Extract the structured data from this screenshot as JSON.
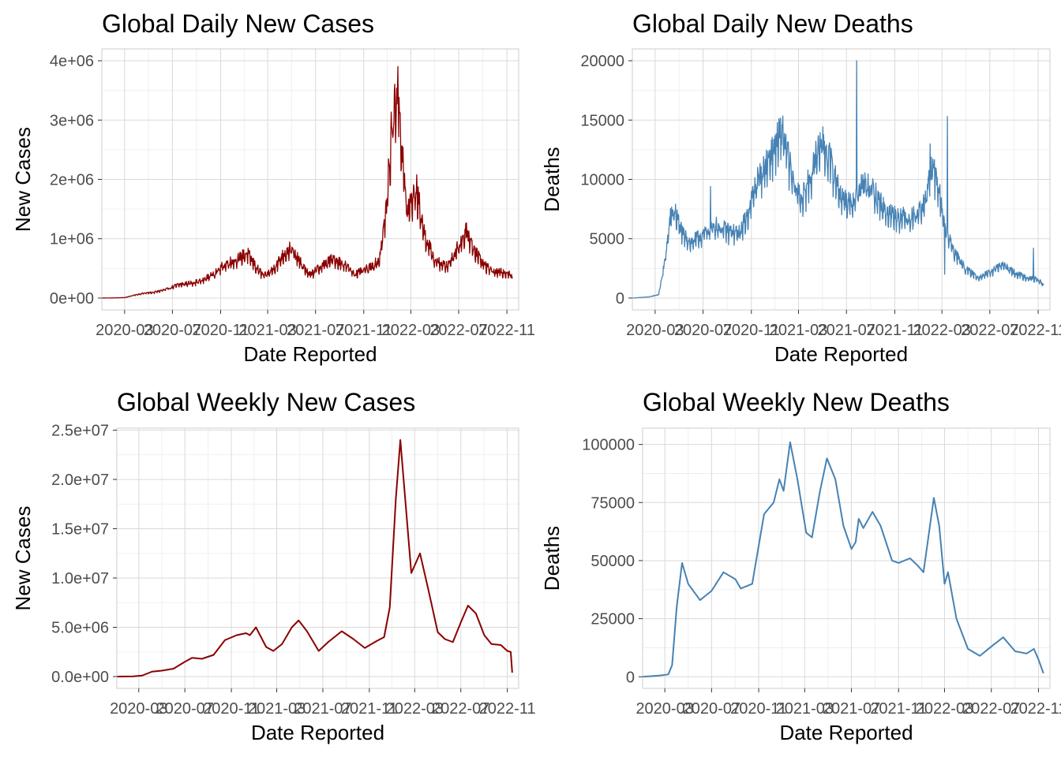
{
  "colors": {
    "cases": "#8B0000",
    "deaths": "#4682B4"
  },
  "chart_data": [
    {
      "type": "line",
      "title": "Global Daily New Cases",
      "xlabel": "Date Reported",
      "ylabel": "New Cases",
      "xlim": [
        "2020-01-03",
        "2022-12-01"
      ],
      "ylim": [
        -200000,
        4200000
      ],
      "yticks": [
        0,
        1000000,
        2000000,
        3000000,
        4000000
      ],
      "ytick_labels": [
        "0e+00",
        "1e+06",
        "2e+06",
        "3e+06",
        "4e+06"
      ],
      "xticks": [
        "2020-03-01",
        "2020-07-01",
        "2020-11-01",
        "2021-03-01",
        "2021-07-01",
        "2021-11-01",
        "2022-03-01",
        "2022-07-01",
        "2022-11-01"
      ],
      "xtick_labels": [
        "2020-03",
        "2020-07",
        "2020-11",
        "2021-03",
        "2021-07",
        "2021-11",
        "2022-03",
        "2022-07",
        "2022-11"
      ],
      "grid": true,
      "series": [
        {
          "color_key": "cases",
          "noise": 0.12,
          "points": [
            [
              "2020-01-03",
              0
            ],
            [
              "2020-02-01",
              2000
            ],
            [
              "2020-03-01",
              8000
            ],
            [
              "2020-03-20",
              40000
            ],
            [
              "2020-04-15",
              80000
            ],
            [
              "2020-05-15",
              100000
            ],
            [
              "2020-06-15",
              150000
            ],
            [
              "2020-07-15",
              230000
            ],
            [
              "2020-08-15",
              260000
            ],
            [
              "2020-09-15",
              300000
            ],
            [
              "2020-10-15",
              430000
            ],
            [
              "2020-11-15",
              600000
            ],
            [
              "2020-12-15",
              680000
            ],
            [
              "2021-01-08",
              780000
            ],
            [
              "2021-02-01",
              520000
            ],
            [
              "2021-02-20",
              380000
            ],
            [
              "2021-03-15",
              500000
            ],
            [
              "2021-04-10",
              750000
            ],
            [
              "2021-04-28",
              860000
            ],
            [
              "2021-05-20",
              650000
            ],
            [
              "2021-06-15",
              400000
            ],
            [
              "2021-07-15",
              550000
            ],
            [
              "2021-08-15",
              680000
            ],
            [
              "2021-09-10",
              600000
            ],
            [
              "2021-10-10",
              420000
            ],
            [
              "2021-11-15",
              520000
            ],
            [
              "2021-12-10",
              650000
            ],
            [
              "2021-12-28",
              1500000
            ],
            [
              "2022-01-10",
              2800000
            ],
            [
              "2022-01-22",
              3500000
            ],
            [
              "2022-01-28",
              3600000
            ],
            [
              "2022-02-10",
              2200000
            ],
            [
              "2022-02-20",
              1500000
            ],
            [
              "2022-03-15",
              1900000
            ],
            [
              "2022-04-05",
              1100000
            ],
            [
              "2022-05-01",
              650000
            ],
            [
              "2022-06-01",
              550000
            ],
            [
              "2022-07-01",
              900000
            ],
            [
              "2022-07-20",
              1150000
            ],
            [
              "2022-08-10",
              850000
            ],
            [
              "2022-09-01",
              600000
            ],
            [
              "2022-10-01",
              450000
            ],
            [
              "2022-11-05",
              450000
            ],
            [
              "2022-11-15",
              350000
            ]
          ]
        }
      ]
    },
    {
      "type": "line",
      "title": "Global Daily New Deaths",
      "xlabel": "Date Reported",
      "ylabel": "Deaths",
      "xlim": [
        "2020-01-03",
        "2022-12-01"
      ],
      "ylim": [
        -1000,
        21000
      ],
      "yticks": [
        0,
        5000,
        10000,
        15000,
        20000
      ],
      "ytick_labels": [
        "0",
        "5000",
        "10000",
        "15000",
        "20000"
      ],
      "xticks": [
        "2020-03-01",
        "2020-07-01",
        "2020-11-01",
        "2021-03-01",
        "2021-07-01",
        "2021-11-01",
        "2022-03-01",
        "2022-07-01",
        "2022-11-01"
      ],
      "xtick_labels": [
        "2020-03",
        "2020-07",
        "2020-11",
        "2021-03",
        "2021-07",
        "2021-11",
        "2022-03",
        "2022-07",
        "2022-11"
      ],
      "grid": true,
      "series": [
        {
          "color_key": "deaths",
          "noise": 0.1,
          "points": [
            [
              "2020-01-03",
              0
            ],
            [
              "2020-02-15",
              100
            ],
            [
              "2020-03-10",
              300
            ],
            [
              "2020-03-25",
              3000
            ],
            [
              "2020-04-10",
              7200
            ],
            [
              "2020-04-20",
              7500
            ],
            [
              "2020-05-10",
              5500
            ],
            [
              "2020-06-01",
              4800
            ],
            [
              "2020-07-01",
              5500
            ],
            [
              "2020-08-01",
              6300
            ],
            [
              "2020-09-01",
              5800
            ],
            [
              "2020-10-01",
              5600
            ],
            [
              "2020-10-20",
              7000
            ],
            [
              "2020-11-15",
              10000
            ],
            [
              "2020-12-15",
              12000
            ],
            [
              "2021-01-20",
              14500
            ],
            [
              "2021-02-15",
              10000
            ],
            [
              "2021-03-10",
              8500
            ],
            [
              "2021-04-01",
              10500
            ],
            [
              "2021-04-25",
              13500
            ],
            [
              "2021-05-15",
              12500
            ],
            [
              "2021-06-15",
              9000
            ],
            [
              "2021-07-10",
              8000
            ],
            [
              "2021-08-10",
              9800
            ],
            [
              "2021-09-01",
              9500
            ],
            [
              "2021-10-10",
              7500
            ],
            [
              "2021-11-15",
              7000
            ],
            [
              "2021-12-15",
              7000
            ],
            [
              "2022-01-15",
              8000
            ],
            [
              "2022-02-01",
              11000
            ],
            [
              "2022-02-15",
              10500
            ],
            [
              "2022-03-10",
              6000
            ],
            [
              "2022-04-01",
              4000
            ],
            [
              "2022-05-01",
              2500
            ],
            [
              "2022-06-01",
              1800
            ],
            [
              "2022-07-01",
              2200
            ],
            [
              "2022-08-01",
              2900
            ],
            [
              "2022-09-01",
              2200
            ],
            [
              "2022-10-01",
              1800
            ],
            [
              "2022-11-01",
              1600
            ],
            [
              "2022-11-15",
              1100
            ]
          ],
          "spikes": [
            [
              "2021-07-27",
              20000
            ],
            [
              "2022-03-15",
              15300
            ],
            [
              "2022-03-08",
              2000
            ],
            [
              "2022-10-20",
              4200
            ],
            [
              "2020-07-20",
              9400
            ],
            [
              "2022-01-30",
              13000
            ]
          ]
        }
      ]
    },
    {
      "type": "line",
      "title": "Global Weekly New Cases",
      "xlabel": "Date Reported",
      "ylabel": "New Cases",
      "xlim": [
        "2020-01-03",
        "2022-12-01"
      ],
      "ylim": [
        -1200000,
        25200000
      ],
      "yticks": [
        0,
        5000000,
        10000000,
        15000000,
        20000000,
        25000000
      ],
      "ytick_labels": [
        "0.0e+00",
        "5.0e+06",
        "1.0e+07",
        "1.5e+07",
        "2.0e+07",
        "2.5e+07"
      ],
      "xticks": [
        "2020-03-01",
        "2020-07-01",
        "2020-11-01",
        "2021-03-01",
        "2021-07-01",
        "2021-11-01",
        "2022-03-01",
        "2022-07-01",
        "2022-11-01"
      ],
      "xtick_labels": [
        "2020-03",
        "2020-07",
        "2020-11",
        "2021-03",
        "2021-07",
        "2021-11",
        "2022-03",
        "2022-07",
        "2022-11"
      ],
      "grid": true,
      "series": [
        {
          "color_key": "cases",
          "points": [
            [
              "2020-01-03",
              0
            ],
            [
              "2020-02-15",
              20000
            ],
            [
              "2020-03-10",
              100000
            ],
            [
              "2020-04-05",
              500000
            ],
            [
              "2020-05-01",
              600000
            ],
            [
              "2020-06-01",
              800000
            ],
            [
              "2020-07-01",
              1500000
            ],
            [
              "2020-07-20",
              1900000
            ],
            [
              "2020-08-15",
              1800000
            ],
            [
              "2020-09-15",
              2200000
            ],
            [
              "2020-10-15",
              3700000
            ],
            [
              "2020-11-15",
              4200000
            ],
            [
              "2020-12-10",
              4400000
            ],
            [
              "2020-12-20",
              4200000
            ],
            [
              "2021-01-05",
              5000000
            ],
            [
              "2021-02-01",
              3000000
            ],
            [
              "2021-02-20",
              2600000
            ],
            [
              "2021-03-15",
              3300000
            ],
            [
              "2021-04-10",
              5000000
            ],
            [
              "2021-04-28",
              5700000
            ],
            [
              "2021-05-20",
              4600000
            ],
            [
              "2021-06-20",
              2600000
            ],
            [
              "2021-07-15",
              3500000
            ],
            [
              "2021-08-20",
              4600000
            ],
            [
              "2021-09-20",
              3800000
            ],
            [
              "2021-10-20",
              2900000
            ],
            [
              "2021-11-20",
              3600000
            ],
            [
              "2021-12-10",
              4000000
            ],
            [
              "2021-12-25",
              7000000
            ],
            [
              "2022-01-10",
              18000000
            ],
            [
              "2022-01-22",
              24000000
            ],
            [
              "2022-02-05",
              17500000
            ],
            [
              "2022-02-20",
              10500000
            ],
            [
              "2022-03-15",
              12500000
            ],
            [
              "2022-04-05",
              9000000
            ],
            [
              "2022-05-01",
              4500000
            ],
            [
              "2022-05-20",
              3800000
            ],
            [
              "2022-06-10",
              3500000
            ],
            [
              "2022-07-01",
              5500000
            ],
            [
              "2022-07-20",
              7200000
            ],
            [
              "2022-08-10",
              6400000
            ],
            [
              "2022-09-01",
              4200000
            ],
            [
              "2022-09-20",
              3300000
            ],
            [
              "2022-10-15",
              3200000
            ],
            [
              "2022-11-01",
              2600000
            ],
            [
              "2022-11-10",
              2500000
            ],
            [
              "2022-11-14",
              400000
            ]
          ]
        }
      ]
    },
    {
      "type": "line",
      "title": "Global Weekly New Deaths",
      "xlabel": "Date Reported",
      "ylabel": "Deaths",
      "xlim": [
        "2020-01-03",
        "2022-12-01"
      ],
      "ylim": [
        -5000,
        107000
      ],
      "yticks": [
        0,
        25000,
        50000,
        75000,
        100000
      ],
      "ytick_labels": [
        "0",
        "25000",
        "50000",
        "75000",
        "100000"
      ],
      "xticks": [
        "2020-03-01",
        "2020-07-01",
        "2020-11-01",
        "2021-03-01",
        "2021-07-01",
        "2021-11-01",
        "2022-03-01",
        "2022-07-01",
        "2022-11-01"
      ],
      "xtick_labels": [
        "2020-03",
        "2020-07",
        "2020-11",
        "2021-03",
        "2021-07",
        "2021-11",
        "2022-03",
        "2022-07",
        "2022-11"
      ],
      "grid": true,
      "series": [
        {
          "color_key": "deaths",
          "points": [
            [
              "2020-01-03",
              0
            ],
            [
              "2020-02-15",
              500
            ],
            [
              "2020-03-10",
              1000
            ],
            [
              "2020-03-20",
              5000
            ],
            [
              "2020-04-01",
              30000
            ],
            [
              "2020-04-15",
              49000
            ],
            [
              "2020-05-01",
              40000
            ],
            [
              "2020-06-01",
              33000
            ],
            [
              "2020-07-01",
              37000
            ],
            [
              "2020-08-01",
              45000
            ],
            [
              "2020-09-01",
              42000
            ],
            [
              "2020-09-15",
              38000
            ],
            [
              "2020-10-15",
              40000
            ],
            [
              "2020-11-15",
              70000
            ],
            [
              "2020-12-10",
              75000
            ],
            [
              "2020-12-25",
              85000
            ],
            [
              "2021-01-05",
              80000
            ],
            [
              "2021-01-22",
              101000
            ],
            [
              "2021-02-10",
              85000
            ],
            [
              "2021-03-05",
              62000
            ],
            [
              "2021-03-20",
              60000
            ],
            [
              "2021-04-10",
              80000
            ],
            [
              "2021-04-28",
              94000
            ],
            [
              "2021-05-20",
              85000
            ],
            [
              "2021-06-10",
              65000
            ],
            [
              "2021-07-01",
              55000
            ],
            [
              "2021-07-12",
              58000
            ],
            [
              "2021-07-20",
              68000
            ],
            [
              "2021-08-01",
              64000
            ],
            [
              "2021-08-25",
              71000
            ],
            [
              "2021-09-15",
              65000
            ],
            [
              "2021-10-15",
              50000
            ],
            [
              "2021-11-01",
              49000
            ],
            [
              "2021-12-01",
              51000
            ],
            [
              "2021-12-20",
              48000
            ],
            [
              "2022-01-05",
              45000
            ],
            [
              "2022-02-01",
              77000
            ],
            [
              "2022-02-15",
              65000
            ],
            [
              "2022-03-01",
              40000
            ],
            [
              "2022-03-10",
              45000
            ],
            [
              "2022-04-01",
              25000
            ],
            [
              "2022-05-01",
              12000
            ],
            [
              "2022-06-01",
              9000
            ],
            [
              "2022-07-01",
              13000
            ],
            [
              "2022-08-01",
              17000
            ],
            [
              "2022-09-01",
              11000
            ],
            [
              "2022-10-01",
              10000
            ],
            [
              "2022-10-20",
              12000
            ],
            [
              "2022-11-01",
              7500
            ],
            [
              "2022-11-14",
              1500
            ]
          ]
        }
      ]
    }
  ]
}
